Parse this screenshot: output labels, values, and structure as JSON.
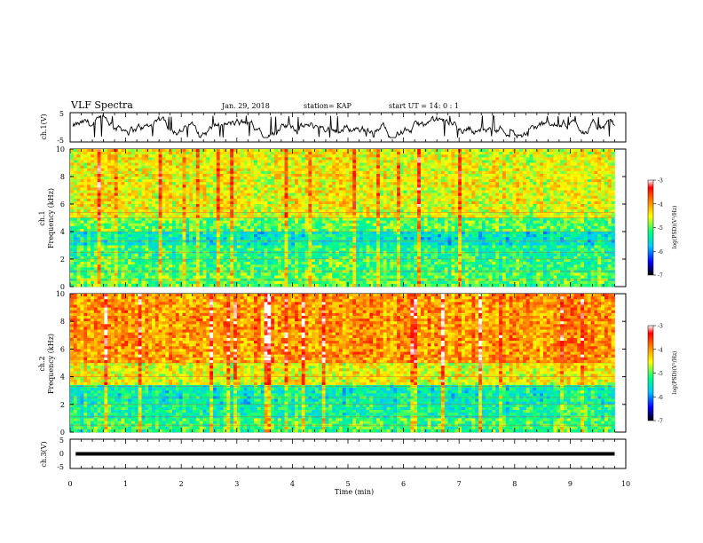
{
  "header": {
    "title": "VLF Spectra",
    "date": "Jan. 29, 2018",
    "station": "station= KAP",
    "start": "start  UT =  14: 0  : 1"
  },
  "colors": {
    "trace": "#000000",
    "colormap": [
      "#000000",
      "#0000ff",
      "#00c8ff",
      "#00ff80",
      "#ffff00",
      "#ff8000",
      "#ff0000",
      "#ffffff"
    ]
  },
  "chart_data": [
    {
      "type": "line",
      "name": "ch1-waveform",
      "ylabel": "ch.1(V)",
      "ylim": [
        -5,
        5
      ],
      "yticks": [
        "5",
        "-5"
      ],
      "xlim": [
        0,
        10
      ],
      "note_range": "trace fluctuates roughly between -3 and 4 V across 0–9.8 min"
    },
    {
      "type": "heatmap",
      "name": "ch1-spectrogram",
      "ylabel1": "ch.1",
      "ylabel2": "Frequency (kHz)",
      "ylim": [
        0,
        10
      ],
      "yticks": [
        "0",
        "2",
        "4",
        "6",
        "8",
        "10"
      ],
      "xlim": [
        0,
        9.8
      ],
      "colorbar": {
        "label": "log(PSD)(V²/Hz)",
        "range": [
          -7,
          -3
        ],
        "ticks": [
          "-3",
          "-4",
          "-5",
          "-6",
          "-7"
        ]
      },
      "bands": [
        {
          "f": [
            0,
            1
          ],
          "level": -5.0
        },
        {
          "f": [
            1,
            2
          ],
          "level": -5.1
        },
        {
          "f": [
            2,
            3
          ],
          "level": -5.2
        },
        {
          "f": [
            3,
            4
          ],
          "level": -5.5
        },
        {
          "f": [
            4,
            5
          ],
          "level": -5.0
        },
        {
          "f": [
            5,
            5.6
          ],
          "level": -4.6
        },
        {
          "f": [
            5.6,
            10
          ],
          "level": -4.5
        }
      ]
    },
    {
      "type": "heatmap",
      "name": "ch2-spectrogram",
      "ylabel1": "ch.2",
      "ylabel2": "Frequency (kHz)",
      "ylim": [
        0,
        10
      ],
      "yticks": [
        "0",
        "2",
        "4",
        "6",
        "8",
        "10"
      ],
      "xlim": [
        0,
        9.8
      ],
      "colorbar": {
        "label": "log(PSD)(V²/Hz)",
        "range": [
          -7,
          -3
        ],
        "ticks": [
          "-3",
          "-4",
          "-5",
          "-6",
          "-7"
        ]
      },
      "bands": [
        {
          "f": [
            0,
            1
          ],
          "level": -5.1
        },
        {
          "f": [
            1,
            2
          ],
          "level": -5.3
        },
        {
          "f": [
            2,
            3.4
          ],
          "level": -5.4
        },
        {
          "f": [
            3.4,
            5
          ],
          "level": -4.5
        },
        {
          "f": [
            5,
            10
          ],
          "level": -4.0
        }
      ]
    },
    {
      "type": "line",
      "name": "ch3-waveform",
      "ylabel": "ch.3(V)",
      "ylim": [
        -5,
        5
      ],
      "yticks": [
        "5",
        "0",
        "-5"
      ],
      "xlim": [
        0,
        10
      ],
      "x": [
        0.1,
        9.8
      ],
      "y": [
        0,
        0
      ]
    }
  ],
  "xaxis": {
    "label": "Time (min)",
    "ticks": [
      "0",
      "1",
      "2",
      "3",
      "4",
      "5",
      "6",
      "7",
      "8",
      "9",
      "10"
    ]
  }
}
